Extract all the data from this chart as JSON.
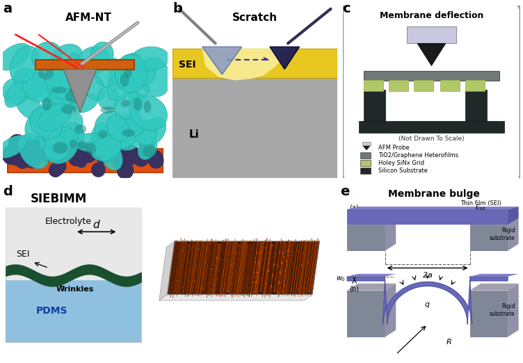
{
  "panel_labels": [
    "a",
    "b",
    "c",
    "d",
    "e"
  ],
  "panel_a": {
    "title": "AFM-NT",
    "beam_color": "#D06010",
    "laser_color": "#FF2020",
    "sei_color": "#30C8C0",
    "substrate_color": "#E05010",
    "dark_particle_color": "#404070",
    "tip_color": "#909090"
  },
  "panel_b": {
    "title": "Scratch",
    "sei_color": "#E8C820",
    "li_color": "#A8A8A8",
    "tip_left_color": "#8090C0",
    "tip_right_color": "#202060",
    "sei_label": "SEI",
    "li_label": "Li"
  },
  "panel_c": {
    "title": "Membrane deflection",
    "probe_color": "#C0C0D8",
    "probe_tip_color": "#202020",
    "tio2_color": "#707878",
    "grid_color": "#B0C868",
    "substrate_color": "#202828",
    "note": "(Not Drawn To Scale)",
    "legend_labels": [
      "AFM Probe",
      "TiO2/Graphene Heterofilms",
      "Holey SiNx Grid",
      "Silicon Substrate"
    ],
    "legend_colors": [
      "#C0C0D8",
      "#707878",
      "#B0C868",
      "#202828"
    ]
  },
  "panel_d": {
    "title": "SIEBIMM",
    "electrolyte_color": "#C8DCF0",
    "sei_color": "#1A5030",
    "pdms_color": "#90C0E0",
    "bg_color": "#E8E8E8"
  },
  "panel_e": {
    "title": "Membrane bulge",
    "film_color": "#6868B8",
    "film_top_color": "#8080C8",
    "substrate_color": "#808898",
    "substrate_top_color": "#A0A0B0"
  },
  "bg_color": "#FFFFFF"
}
